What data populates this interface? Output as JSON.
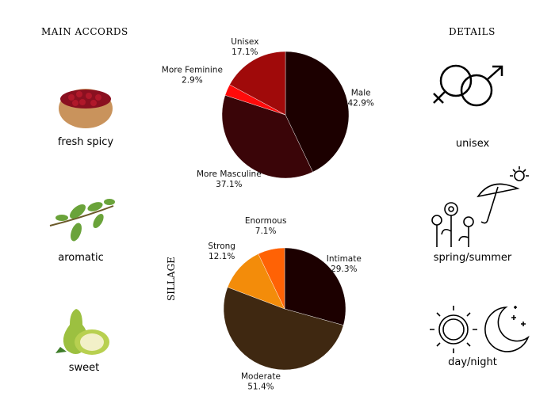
{
  "left_header": "MAIN ACCORDS",
  "right_header": "DETAILS",
  "accords": [
    {
      "label": "fresh spicy",
      "icon": "cranberry-bowl-icon"
    },
    {
      "label": "aromatic",
      "icon": "herb-sprig-icon"
    },
    {
      "label": "sweet",
      "icon": "pear-icon"
    }
  ],
  "details": [
    {
      "label": "unisex",
      "icon": "gender-symbols-icon"
    },
    {
      "label": "spring/summer",
      "icon": "flowers-umbrella-sun-icon"
    },
    {
      "label": "day/night",
      "icon": "sun-moon-icon"
    }
  ],
  "chart_data": [
    {
      "type": "pie",
      "title": "",
      "categories": [
        "Male",
        "More Masculine",
        "More Feminine",
        "Unisex"
      ],
      "values": [
        42.9,
        37.1,
        2.9,
        17.1
      ],
      "value_labels": [
        "42.9%",
        "37.1%",
        "2.9%",
        "17.1%"
      ],
      "colors": [
        "#1c0000",
        "#3a0508",
        "#ff0a0a",
        "#a00a0a"
      ]
    },
    {
      "type": "pie",
      "title": "SILLAGE",
      "categories": [
        "Intimate",
        "Moderate",
        "Strong",
        "Enormous"
      ],
      "values": [
        29.3,
        51.4,
        12.1,
        7.1
      ],
      "value_labels": [
        "29.3%",
        "51.4%",
        "12.1%",
        "7.1%"
      ],
      "colors": [
        "#1c0000",
        "#3f2811",
        "#f38c0a",
        "#ff6205"
      ]
    }
  ]
}
